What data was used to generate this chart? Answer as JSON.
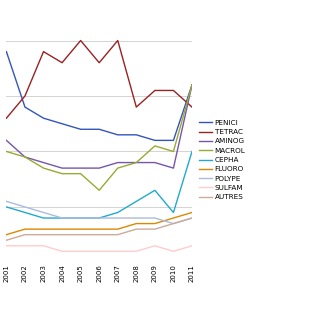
{
  "years": [
    2001,
    2002,
    2003,
    2004,
    2005,
    2006,
    2007,
    2008,
    2009,
    2010,
    2011
  ],
  "series": {
    "PENICI": {
      "color": "#3355bb",
      "values": [
        38,
        28,
        26,
        25,
        24,
        24,
        23,
        23,
        22,
        22,
        32
      ]
    },
    "TETRAC": {
      "color": "#992222",
      "values": [
        26,
        30,
        38,
        36,
        40,
        36,
        40,
        28,
        31,
        31,
        28
      ]
    },
    "AMINOG": {
      "color": "#7755aa",
      "values": [
        22,
        19,
        18,
        17,
        17,
        17,
        18,
        18,
        18,
        17,
        32
      ]
    },
    "MACROL": {
      "color": "#99aa33",
      "values": [
        20,
        19,
        17,
        16,
        16,
        13,
        17,
        18,
        21,
        20,
        32
      ]
    },
    "CEPHA": {
      "color": "#22aacc",
      "values": [
        10,
        9,
        8,
        8,
        8,
        8,
        9,
        11,
        13,
        9,
        20
      ]
    },
    "FLUORO": {
      "color": "#dd8800",
      "values": [
        5,
        6,
        6,
        6,
        6,
        6,
        6,
        7,
        7,
        8,
        9
      ]
    },
    "POLYPE": {
      "color": "#aabbdd",
      "values": [
        11,
        10,
        9,
        8,
        8,
        8,
        8,
        8,
        8,
        7,
        8
      ]
    },
    "SULFAM": {
      "color": "#ffcccc",
      "values": [
        3,
        3,
        3,
        2,
        2,
        2,
        2,
        2,
        3,
        2,
        3
      ]
    },
    "AUTRES": {
      "color": "#ccaa99",
      "values": [
        4,
        5,
        5,
        5,
        5,
        5,
        5,
        6,
        6,
        7,
        8
      ]
    }
  },
  "legend_labels": [
    "PENICI",
    "TETRAC",
    "AMINOG",
    "MACROL",
    "CEPHA",
    "FLUORO",
    "POLYPE",
    "SULFAM",
    "AUTRES"
  ],
  "ylim": [
    0,
    45
  ],
  "grid_color": "#cccccc",
  "grid_lw": 0.6,
  "background_color": "#ffffff",
  "line_width": 1.0,
  "xtick_fontsize": 5.0,
  "legend_fontsize": 5.2,
  "figsize": [
    3.2,
    3.2
  ],
  "dpi": 100
}
